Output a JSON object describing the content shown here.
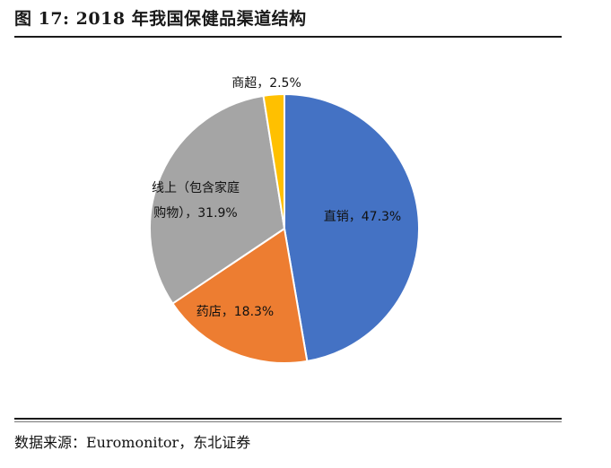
{
  "title": "图 17: 2018 年我国保健品渠道结构",
  "source": "数据来源：Euromonitor，东北证券",
  "chart_data": {
    "type": "pie",
    "slices": [
      {
        "name": "直销",
        "value": 47.3,
        "color": "#4472c4",
        "label_lines": [
          "直销，47.3%"
        ]
      },
      {
        "name": "药店",
        "value": 18.3,
        "color": "#ed7d31",
        "label_lines": [
          "药店，18.3%"
        ]
      },
      {
        "name": "线上（包含家庭购物）",
        "value": 31.9,
        "color": "#a5a5a5",
        "label_lines": [
          "线上（包含家庭",
          "购物），31.9%"
        ]
      },
      {
        "name": "商超",
        "value": 2.5,
        "color": "#ffc000",
        "label_lines": [
          "商超，2.5%"
        ]
      }
    ]
  }
}
